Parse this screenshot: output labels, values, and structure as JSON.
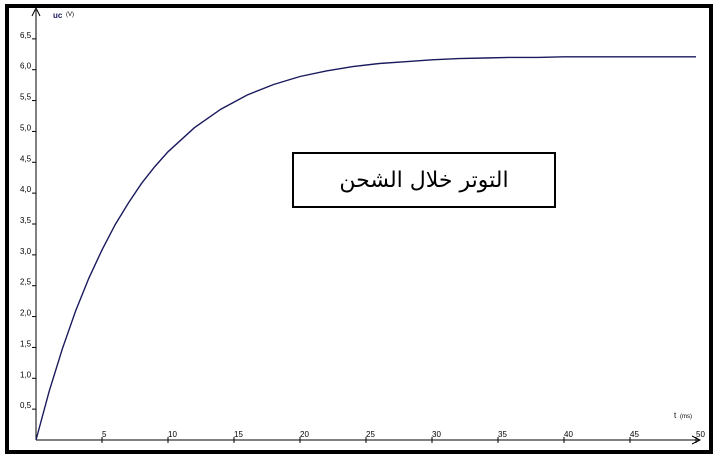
{
  "chart_data": {
    "type": "line",
    "ylabel": "uc",
    "yunit": "(V)",
    "xlabel": "t",
    "xunit": "(ms)",
    "xlim": [
      0,
      50
    ],
    "ylim": [
      0,
      7
    ],
    "x_ticks": [
      "5",
      "10",
      "15",
      "20",
      "25",
      "30",
      "35",
      "40",
      "45",
      "50"
    ],
    "y_ticks": [
      "0,5",
      "1,0",
      "1,5",
      "2,0",
      "2,5",
      "3,0",
      "3,5",
      "4,0",
      "4,5",
      "5,0",
      "5,5",
      "6,0",
      "6,5"
    ],
    "annotation": "التوتر خلال الشحن",
    "series": [
      {
        "color": "#1a1a5e",
        "x": [
          0,
          1,
          2,
          3,
          4,
          5,
          6,
          7,
          8,
          9,
          10,
          12,
          14,
          16,
          18,
          20,
          22,
          24,
          26,
          28,
          30,
          32,
          34,
          36,
          38,
          40,
          42,
          44,
          46,
          48,
          50
        ],
        "y": [
          0,
          0.79,
          1.48,
          2.09,
          2.62,
          3.08,
          3.49,
          3.84,
          4.16,
          4.43,
          4.67,
          5.06,
          5.36,
          5.59,
          5.76,
          5.89,
          5.98,
          6.05,
          6.1,
          6.13,
          6.16,
          6.18,
          6.19,
          6.2,
          6.2,
          6.21,
          6.21,
          6.21,
          6.21,
          6.21,
          6.21
        ]
      }
    ]
  }
}
